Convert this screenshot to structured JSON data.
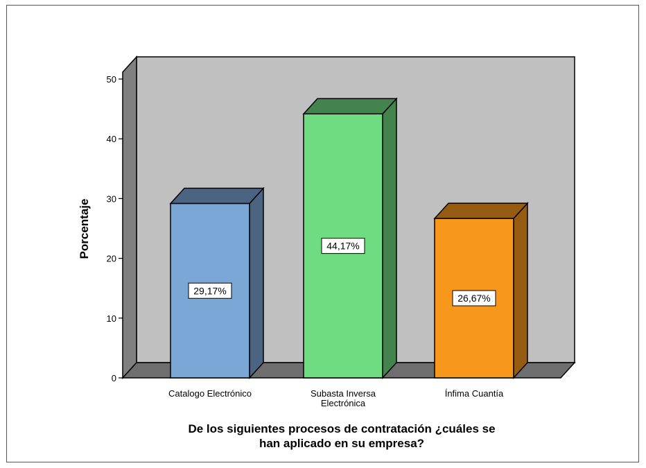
{
  "chart_data": {
    "type": "bar",
    "categories": [
      "Catalogo Electrónico",
      "Subasta Inversa Electrónica",
      "Ínfima Cuantía"
    ],
    "category_lines": [
      [
        "Catalogo Electrónico"
      ],
      [
        "Subasta Inversa",
        "Electrónica"
      ],
      [
        "Ínfima Cuantía"
      ]
    ],
    "values": [
      29.17,
      44.17,
      26.67
    ],
    "data_labels": [
      "29,17%",
      "44,17%",
      "26,67%"
    ],
    "colors": [
      "#7ba7d7",
      "#6fdc82",
      "#f7981d"
    ],
    "ylabel": "Porcentaje",
    "xlabel_lines": [
      "De los siguientes procesos de contratación ¿cuáles se",
      "han aplicado en su empresa?"
    ],
    "ylim": [
      0,
      50
    ],
    "yticks": [
      0,
      10,
      20,
      30,
      40,
      50
    ],
    "grid": false,
    "style": "3d",
    "background": "#c0c0c0"
  }
}
